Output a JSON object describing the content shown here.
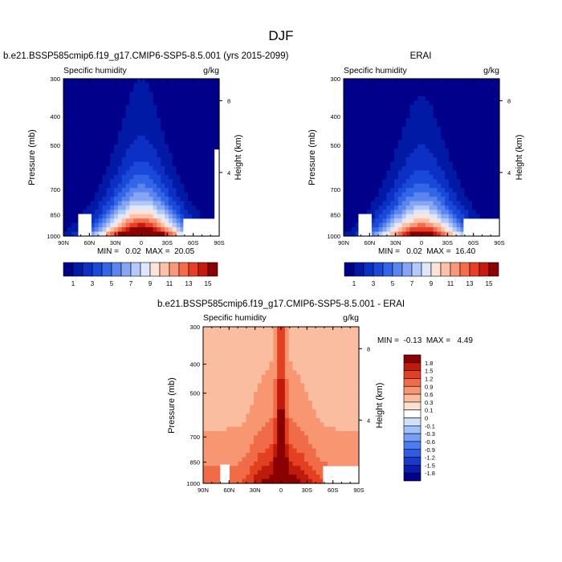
{
  "figure_title": "DJF",
  "chart_data": [
    {
      "type": "heatmap",
      "title": "b.e21.BSSP585cmip6.f19_g17.CMIP6-SSP5-8.5.001 (yrs 2015-2099)",
      "left_label": "Specific humidity",
      "units": "g/kg",
      "ylabel": "Pressure (mb)",
      "right_ylabel": "Height (km)",
      "x_ticks": [
        "90N",
        "60N",
        "30N",
        "0",
        "30S",
        "60S",
        "90S"
      ],
      "y_ticks": [
        "300",
        "400",
        "500",
        "700",
        "850",
        "1000"
      ],
      "height_ticks": [
        "8",
        "4"
      ],
      "stats": "MIN =   0.02  MAX =  20.05",
      "colorbar_labels": [
        "1",
        "3",
        "5",
        "7",
        "9",
        "11",
        "13",
        "15"
      ],
      "levels": [
        1,
        2,
        3,
        4,
        5,
        6,
        7,
        8,
        9,
        10,
        11,
        12,
        13,
        14,
        15
      ],
      "field_min": 0.02,
      "field_max": 20.05
    },
    {
      "type": "heatmap",
      "title": "ERAI",
      "left_label": "Specific humidity",
      "units": "g/kg",
      "ylabel": "Pressure (mb)",
      "right_ylabel": "Height (km)",
      "x_ticks": [
        "90N",
        "60N",
        "30N",
        "0",
        "30S",
        "60S",
        "90S"
      ],
      "y_ticks": [
        "300",
        "400",
        "500",
        "700",
        "850",
        "1000"
      ],
      "height_ticks": [
        "8",
        "4"
      ],
      "stats": "MIN =   0.02  MAX =  16.40",
      "colorbar_labels": [
        "1",
        "3",
        "5",
        "7",
        "9",
        "11",
        "13",
        "15"
      ],
      "levels": [
        1,
        2,
        3,
        4,
        5,
        6,
        7,
        8,
        9,
        10,
        11,
        12,
        13,
        14,
        15
      ],
      "field_min": 0.02,
      "field_max": 16.4
    },
    {
      "type": "heatmap",
      "title": "b.e21.BSSP585cmip6.f19_g17.CMIP6-SSP5-8.5.001 - ERAI",
      "left_label": "Specific humidity",
      "units": "g/kg",
      "ylabel": "Pressure (mb)",
      "right_ylabel": "Height (km)",
      "x_ticks": [
        "90N",
        "60N",
        "30N",
        "0",
        "30S",
        "60S",
        "90S"
      ],
      "y_ticks": [
        "300",
        "400",
        "500",
        "700",
        "850",
        "1000"
      ],
      "height_ticks": [
        "8",
        "4"
      ],
      "stats": "MIN =  -0.13  MAX =   4.49",
      "colorbar_labels": [
        "1.8",
        "1.5",
        "1.2",
        "0.9",
        "0.6",
        "0.3",
        "0.1",
        "0",
        "-0.1",
        "-0.3",
        "-0.6",
        "-0.9",
        "-1.2",
        "-1.5",
        "-1.8"
      ],
      "levels": [
        -1.8,
        -1.5,
        -1.2,
        -0.9,
        -0.6,
        -0.3,
        -0.1,
        0,
        0.1,
        0.3,
        0.6,
        0.9,
        1.2,
        1.5,
        1.8
      ],
      "field_min": -0.13,
      "field_max": 4.49
    }
  ],
  "colormaps": {
    "abs": [
      "#00008b",
      "#001aa6",
      "#0c2fc4",
      "#1a48d9",
      "#3366e6",
      "#5a85ef",
      "#86a6f4",
      "#b3c9fa",
      "#dde7fd",
      "#fde4d8",
      "#fbc0a6",
      "#f8987a",
      "#f46c4c",
      "#e83e26",
      "#c81b10",
      "#8b0000"
    ],
    "diff": [
      "#00008b",
      "#0a1bb0",
      "#1a3acc",
      "#2f5ce3",
      "#4d7ef0",
      "#76a0f5",
      "#a2c1f9",
      "#cfe0fc",
      "#ffffff",
      "#fde0cf",
      "#fbbd9f",
      "#f89672",
      "#f06b47",
      "#e2401f",
      "#bf1b0a",
      "#8b0000"
    ]
  }
}
